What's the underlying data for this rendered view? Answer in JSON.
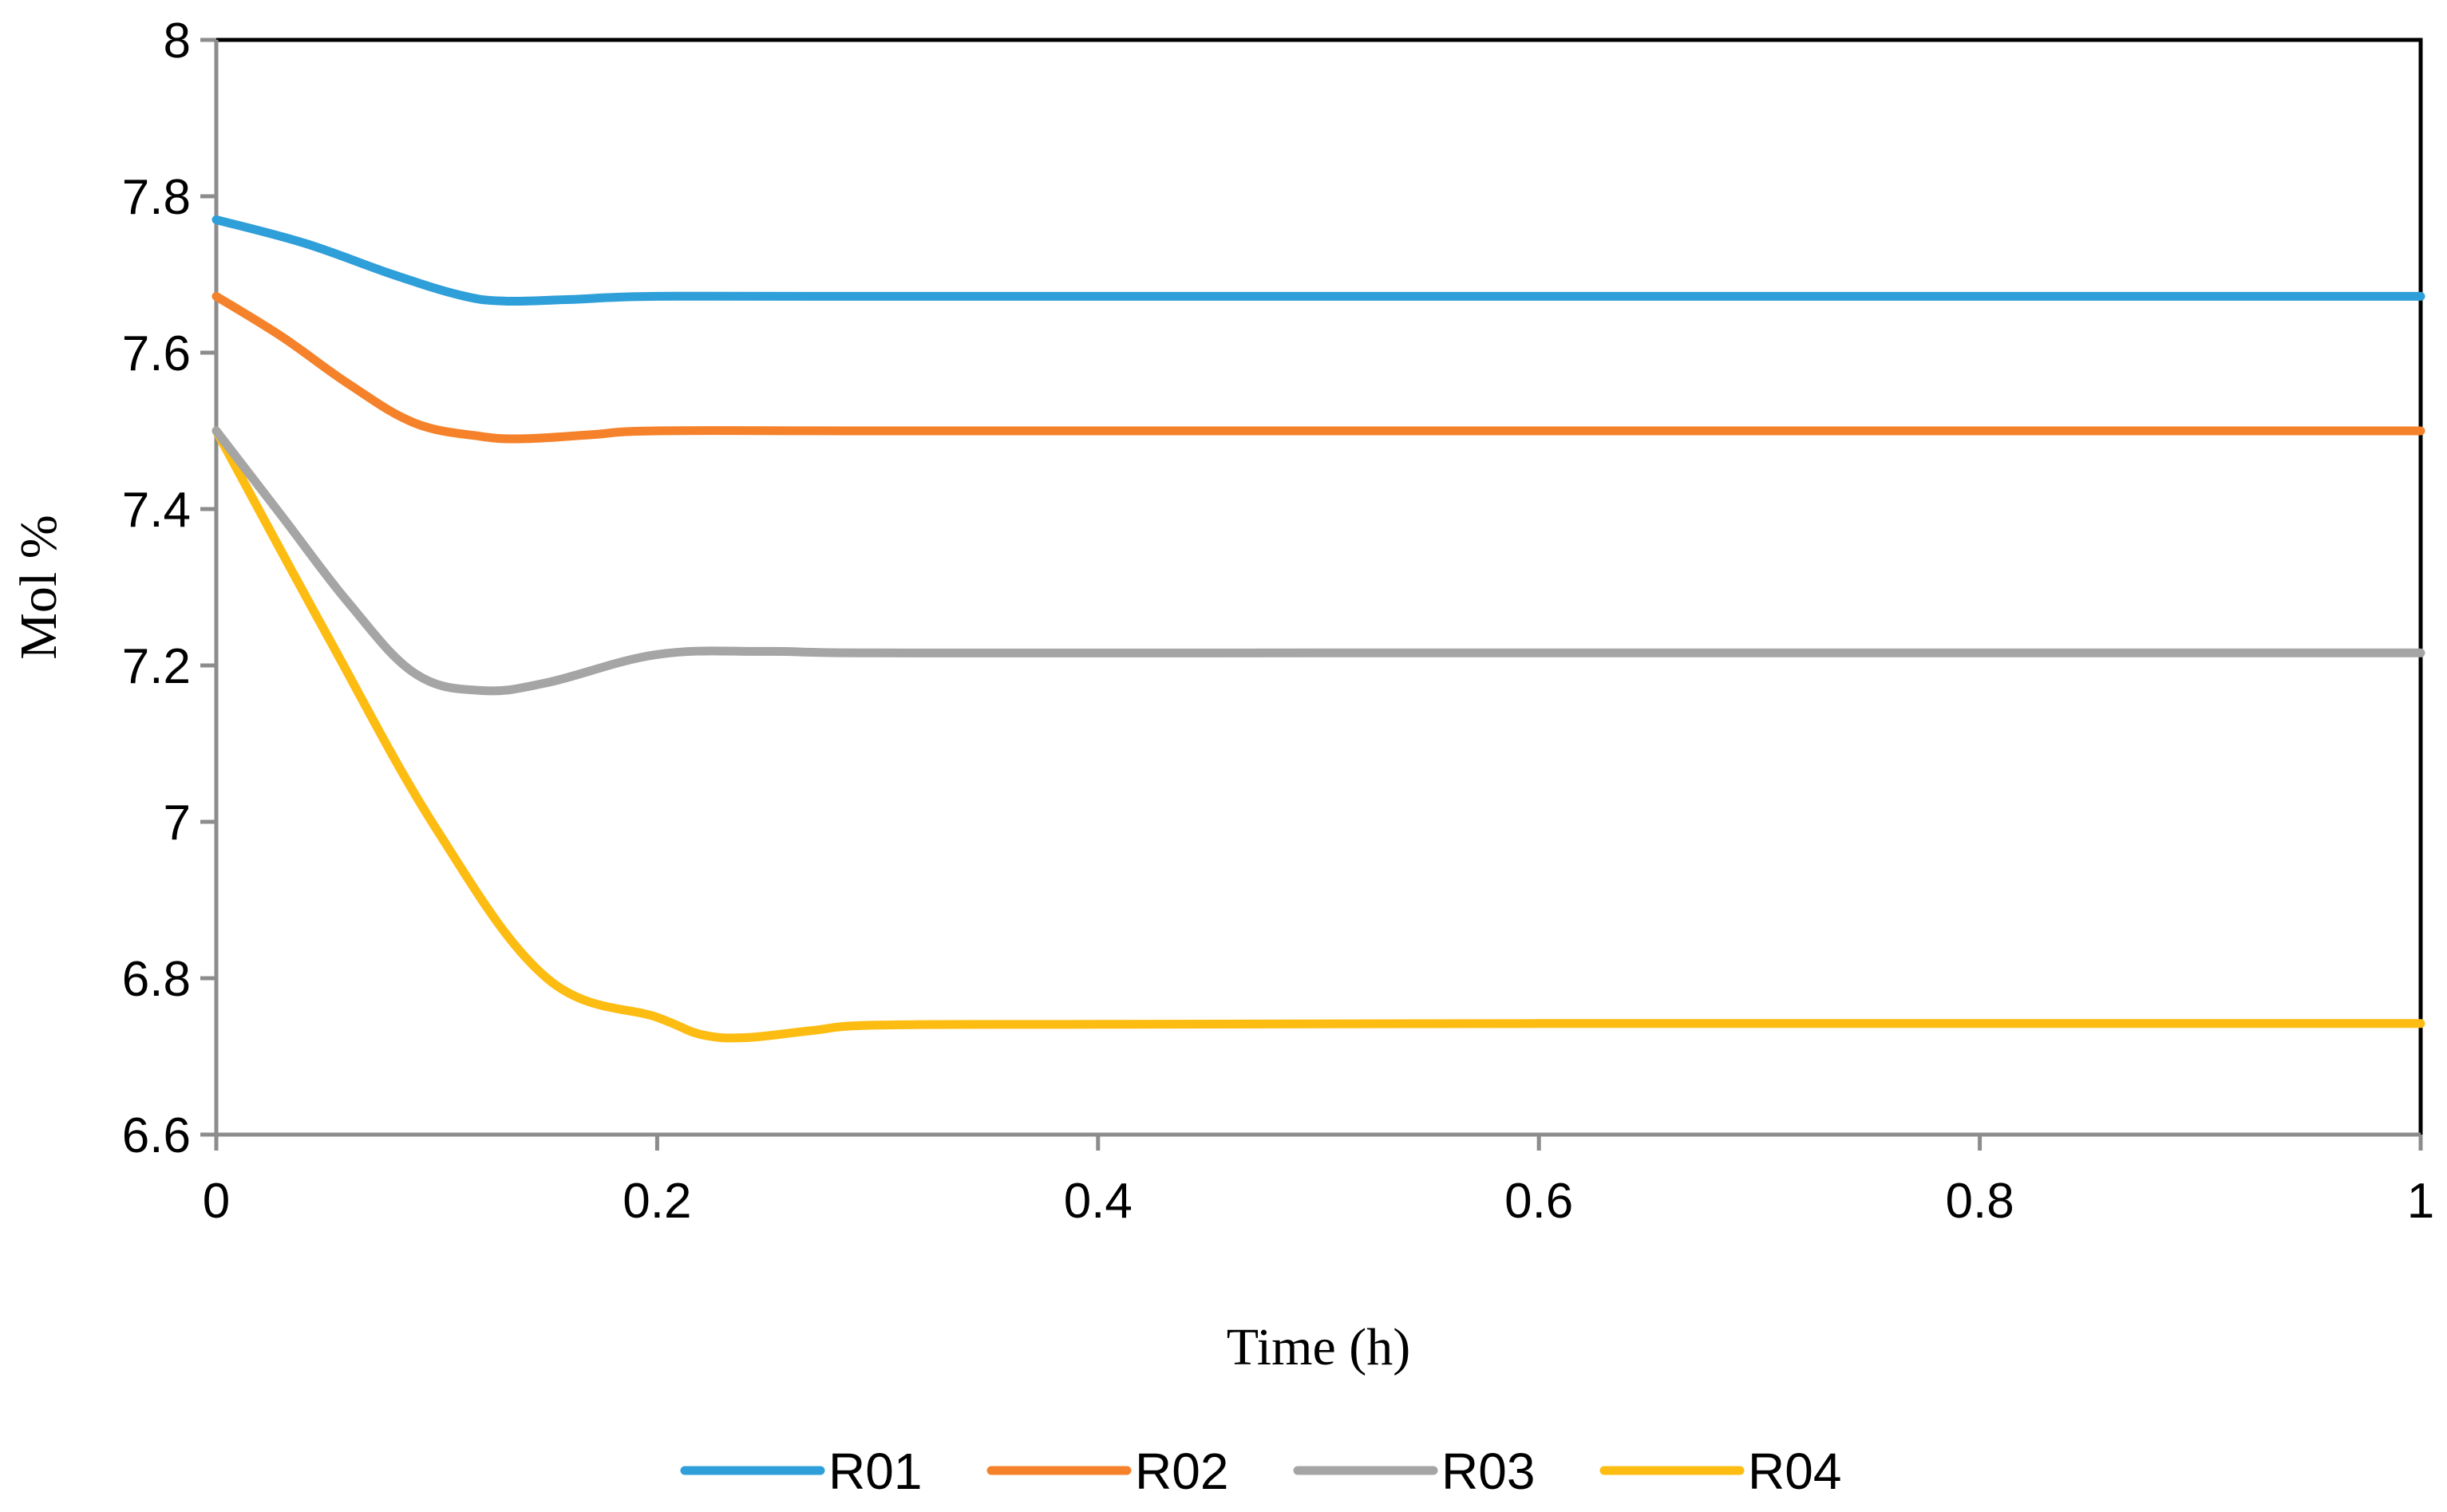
{
  "chart_data": {
    "type": "line",
    "title": "",
    "xlabel": "Time (h)",
    "ylabel": "Mol %",
    "xlim": [
      0,
      1
    ],
    "ylim": [
      6.6,
      8
    ],
    "x_ticks": [
      0,
      0.2,
      0.4,
      0.6,
      0.8,
      1
    ],
    "x_tick_labels": [
      "0",
      "0.2",
      "0.4",
      "0.6",
      "0.8",
      "1"
    ],
    "y_ticks": [
      6.6,
      6.8,
      7,
      7.2,
      7.4,
      7.6,
      7.8,
      8
    ],
    "y_tick_labels": [
      "6.6",
      "6.8",
      "7",
      "7.2",
      "7.4",
      "7.6",
      "7.8",
      "8"
    ],
    "grid": false,
    "legend_position": "bottom",
    "series": [
      {
        "name": "R01",
        "color": "#2e9fd8",
        "x": [
          0,
          0.04,
          0.08,
          0.11,
          0.13,
          0.16,
          0.2,
          0.3,
          0.5,
          1
        ],
        "values": [
          7.77,
          7.74,
          7.7,
          7.674,
          7.666,
          7.668,
          7.672,
          7.672,
          7.672,
          7.672
        ]
      },
      {
        "name": "R02",
        "color": "#f5822a",
        "x": [
          0,
          0.03,
          0.06,
          0.09,
          0.12,
          0.14,
          0.17,
          0.2,
          0.3,
          0.5,
          1
        ],
        "values": [
          7.672,
          7.62,
          7.56,
          7.51,
          7.493,
          7.49,
          7.495,
          7.5,
          7.5,
          7.5,
          7.5
        ]
      },
      {
        "name": "R03",
        "color": "#a5a5a5",
        "x": [
          0,
          0.03,
          0.06,
          0.09,
          0.12,
          0.15,
          0.2,
          0.25,
          0.3,
          0.5,
          1
        ],
        "values": [
          7.5,
          7.39,
          7.28,
          7.19,
          7.168,
          7.178,
          7.214,
          7.218,
          7.216,
          7.216,
          7.216
        ]
      },
      {
        "name": "R04",
        "color": "#fdbc11",
        "x": [
          0,
          0.05,
          0.1,
          0.15,
          0.2,
          0.22,
          0.24,
          0.27,
          0.3,
          0.4,
          0.6,
          1
        ],
        "values": [
          7.5,
          7.24,
          6.99,
          6.8,
          6.75,
          6.728,
          6.724,
          6.733,
          6.74,
          6.741,
          6.742,
          6.742
        ]
      }
    ]
  }
}
